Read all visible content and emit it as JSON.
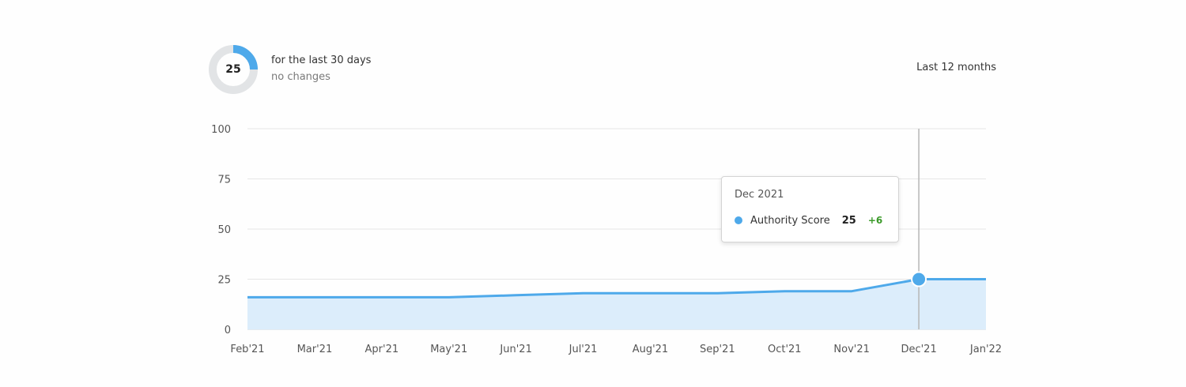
{
  "summary": {
    "score": "25",
    "score_fraction": 0.25,
    "period_text": "for the last 30 days",
    "change_text": "no changes"
  },
  "range_selector": {
    "label": "Last 12 months"
  },
  "tooltip": {
    "date": "Dec 2021",
    "series_name": "Authority Score",
    "value": "25",
    "delta": "+6",
    "active_index": 10
  },
  "colors": {
    "line": "#4ea9ea",
    "area": "#dcedfb",
    "ring_track": "#e2e4e6",
    "ring_fill": "#4ea9ea",
    "grid": "#e6e6e6",
    "crosshair": "#b5b5b5",
    "delta_positive": "#3c9a2b"
  },
  "chart_data": {
    "type": "area",
    "categories": [
      "Feb'21",
      "Mar'21",
      "Apr'21",
      "May'21",
      "Jun'21",
      "Jul'21",
      "Aug'21",
      "Sep'21",
      "Oct'21",
      "Nov'21",
      "Dec'21",
      "Jan'22"
    ],
    "series": [
      {
        "name": "Authority Score",
        "values": [
          16,
          16,
          16,
          16,
          17,
          18,
          18,
          18,
          19,
          19,
          25,
          25
        ]
      }
    ],
    "yticks": [
      "0",
      "25",
      "50",
      "75",
      "100"
    ],
    "ylim": [
      0,
      100
    ],
    "grid": true,
    "title": "",
    "xlabel": "",
    "ylabel": ""
  }
}
